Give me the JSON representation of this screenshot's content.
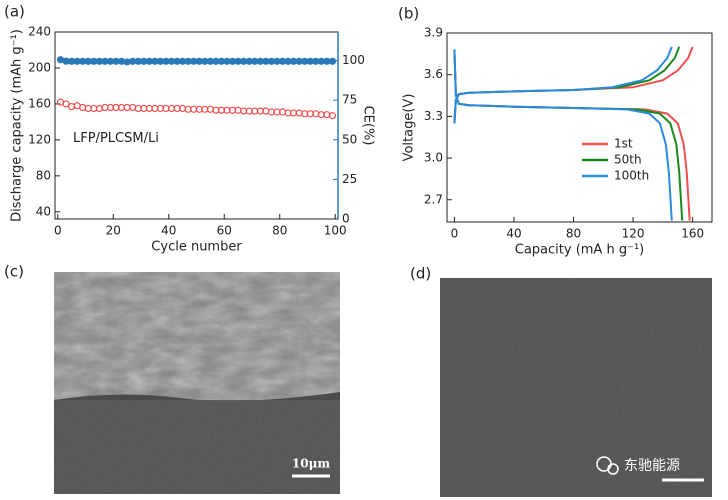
{
  "chart_data": [
    {
      "type": "scatter",
      "panel_label": "(a)",
      "xlabel": "Cycle number",
      "ylabel": "Discharge capacity (mAh g⁻¹)",
      "y2label": "CE(%)",
      "annotation": "LFP/PLCSM/Li",
      "xlim": [
        -1,
        101
      ],
      "xticks": [
        0,
        20,
        40,
        60,
        80,
        100
      ],
      "ylim": [
        32,
        240
      ],
      "yticks": [
        40,
        80,
        120,
        160,
        200,
        240
      ],
      "y2lim": [
        0,
        118
      ],
      "y2ticks": [
        0,
        25,
        50,
        75,
        100
      ],
      "y2_color": "#2a7ab8",
      "x": [
        1,
        3,
        5,
        7,
        9,
        11,
        13,
        15,
        17,
        19,
        21,
        23,
        25,
        27,
        29,
        31,
        33,
        35,
        37,
        39,
        41,
        43,
        45,
        47,
        49,
        51,
        53,
        55,
        57,
        59,
        61,
        63,
        65,
        67,
        69,
        71,
        73,
        75,
        77,
        79,
        81,
        83,
        85,
        87,
        89,
        91,
        93,
        95,
        97,
        99
      ],
      "series": [
        {
          "name": "Discharge capacity",
          "color": "#f05050",
          "marker": "open",
          "values": [
            162,
            160,
            157,
            158,
            156,
            155,
            155,
            155,
            156,
            156,
            156,
            156,
            156,
            156,
            155,
            155,
            155,
            155,
            155,
            155,
            155,
            155,
            155,
            154,
            154,
            154,
            154,
            154,
            153,
            153,
            153,
            153,
            153,
            152,
            152,
            152,
            152,
            152,
            151,
            151,
            151,
            150,
            150,
            150,
            149,
            149,
            149,
            148,
            148,
            147
          ]
        },
        {
          "name": "CE",
          "color": "#2a7ab8",
          "marker": "filled",
          "axis": "y2",
          "values": [
            100.5,
            99.6,
            99.5,
            99.5,
            99.5,
            99.5,
            99.5,
            99.5,
            99.5,
            99.5,
            99.5,
            99.5,
            99.1,
            99.5,
            99.5,
            99.5,
            99.5,
            99.5,
            99.5,
            99.5,
            99.5,
            99.5,
            99.5,
            99.5,
            99.5,
            99.5,
            99.5,
            99.5,
            99.5,
            99.5,
            99.5,
            99.5,
            99.5,
            99.5,
            99.5,
            99.5,
            99.5,
            99.5,
            99.5,
            99.5,
            99.5,
            99.5,
            99.5,
            99.5,
            99.5,
            99.5,
            99.5,
            99.5,
            99.5,
            99.5
          ]
        }
      ]
    },
    {
      "type": "line",
      "panel_label": "(b)",
      "xlabel": "Capacity (mA h g⁻¹)",
      "ylabel": "Voltage(V)",
      "xlim": [
        -5,
        173
      ],
      "xticks": [
        0,
        40,
        80,
        120,
        160
      ],
      "ylim": [
        2.54,
        3.9
      ],
      "yticks": [
        2.7,
        {
          "value": 3,
          "label": "3.0"
        },
        3.3,
        3.6,
        3.9
      ],
      "legend": "lower right",
      "series": [
        {
          "name": "1st",
          "color": "#f05050",
          "x": [
            0,
            1,
            3,
            10,
            40,
            80,
            120,
            140,
            150,
            157,
            160,
            null,
            0,
            1,
            3,
            10,
            40,
            80,
            128,
            143,
            150,
            154,
            156,
            158
          ],
          "values": [
            3.25,
            3.42,
            3.46,
            3.47,
            3.48,
            3.49,
            3.51,
            3.56,
            3.63,
            3.72,
            3.8,
            null,
            3.78,
            3.45,
            3.39,
            3.38,
            3.37,
            3.36,
            3.35,
            3.32,
            3.25,
            3.1,
            2.9,
            2.55
          ]
        },
        {
          "name": "50th",
          "color": "#1a8a1a",
          "x": [
            0,
            1,
            3,
            10,
            40,
            80,
            111,
            131,
            141,
            148,
            151,
            null,
            0,
            1,
            3,
            10,
            40,
            80,
            123,
            138,
            145,
            149,
            151,
            153
          ],
          "values": [
            3.25,
            3.42,
            3.46,
            3.47,
            3.48,
            3.49,
            3.51,
            3.56,
            3.63,
            3.72,
            3.8,
            null,
            3.78,
            3.45,
            3.39,
            3.38,
            3.37,
            3.36,
            3.35,
            3.32,
            3.25,
            3.1,
            2.9,
            2.55
          ]
        },
        {
          "name": "100th",
          "color": "#2a8ae0",
          "x": [
            0,
            1,
            3,
            10,
            40,
            80,
            106,
            126,
            136,
            143,
            146,
            null,
            0,
            1,
            3,
            10,
            40,
            80,
            116,
            131,
            138,
            142,
            144,
            146
          ],
          "values": [
            3.25,
            3.42,
            3.46,
            3.47,
            3.48,
            3.49,
            3.51,
            3.56,
            3.63,
            3.72,
            3.8,
            null,
            3.78,
            3.45,
            3.39,
            3.38,
            3.37,
            3.36,
            3.35,
            3.32,
            3.25,
            3.1,
            2.9,
            2.55
          ]
        }
      ]
    }
  ],
  "images": [
    {
      "panel_label": "(c)",
      "scale_bar": "10μm"
    },
    {
      "panel_label": "(d)"
    }
  ],
  "watermark": "东驰能源"
}
